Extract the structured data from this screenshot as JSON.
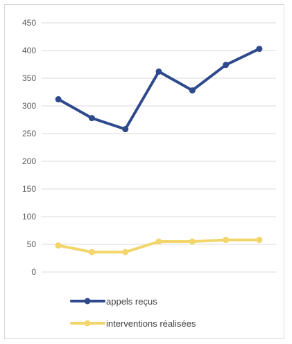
{
  "chart_data": {
    "type": "line",
    "categories": [
      "",
      "",
      "",
      "",
      "",
      "",
      ""
    ],
    "series": [
      {
        "name": "appels reçus",
        "color": "#2e4a8c",
        "values": [
          312,
          278,
          258,
          362,
          328,
          374,
          403
        ]
      },
      {
        "name": "interventions réalisées",
        "color": "#f2d66b",
        "values": [
          48,
          36,
          36,
          55,
          55,
          58,
          58
        ]
      }
    ],
    "ylim": [
      0,
      450
    ],
    "y_ticks": [
      0,
      50,
      100,
      150,
      200,
      250,
      300,
      350,
      400,
      450
    ],
    "grid": true,
    "legend_position": "bottom",
    "title": "",
    "xlabel": "",
    "ylabel": ""
  }
}
